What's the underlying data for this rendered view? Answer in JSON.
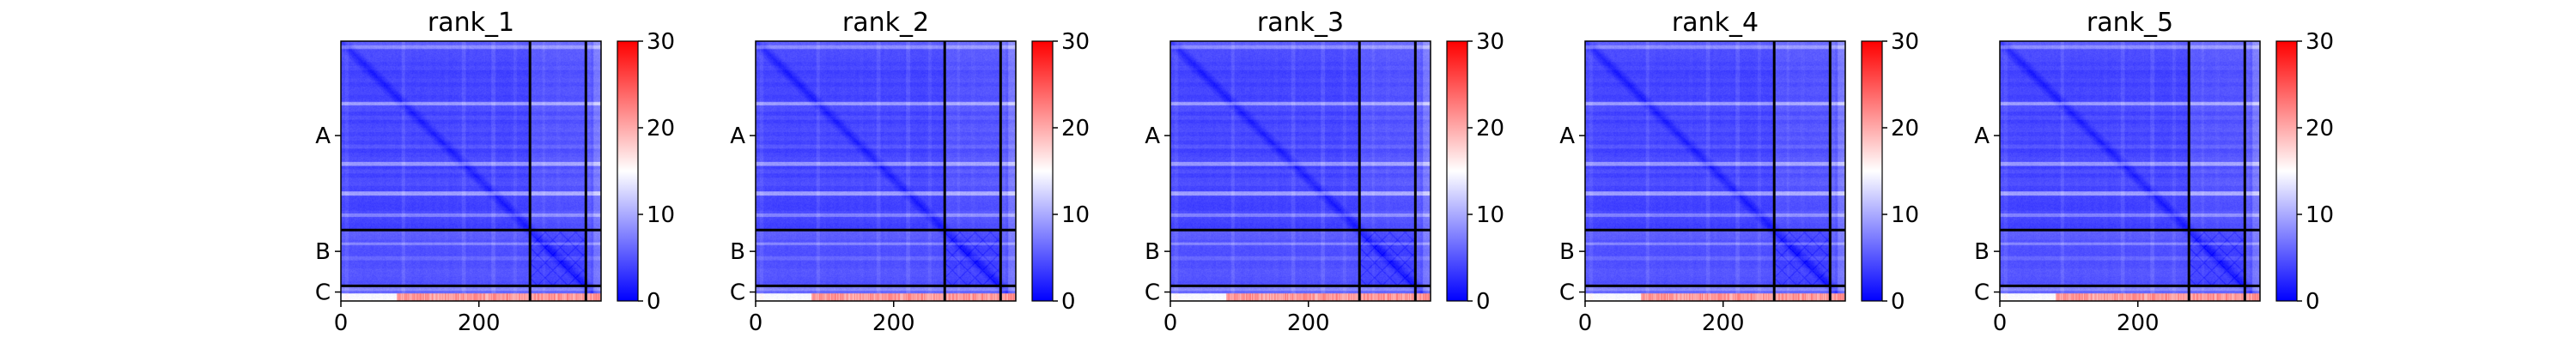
{
  "chart_data": [
    {
      "type": "heatmap",
      "title": "rank_1",
      "xlabel": "",
      "ylabel": "",
      "xlim": [
        0,
        377
      ],
      "ylim": [
        377,
        0
      ],
      "x_ticks": [
        {
          "value": 0,
          "label": "0"
        },
        {
          "value": 200,
          "label": "200"
        }
      ],
      "y_tick_labels": [
        {
          "value": 137,
          "label": "A"
        },
        {
          "value": 305,
          "label": "B"
        },
        {
          "value": 364,
          "label": "C"
        }
      ],
      "chain_boundaries": [
        274,
        355
      ],
      "colorbar": {
        "min": 0,
        "max": 30,
        "ticks": [
          "0",
          "10",
          "20",
          "30"
        ],
        "colormap": "bwr"
      }
    },
    {
      "type": "heatmap",
      "title": "rank_2",
      "xlabel": "",
      "ylabel": "",
      "xlim": [
        0,
        377
      ],
      "ylim": [
        377,
        0
      ],
      "x_ticks": [
        {
          "value": 0,
          "label": "0"
        },
        {
          "value": 200,
          "label": "200"
        }
      ],
      "y_tick_labels": [
        {
          "value": 137,
          "label": "A"
        },
        {
          "value": 305,
          "label": "B"
        },
        {
          "value": 364,
          "label": "C"
        }
      ],
      "chain_boundaries": [
        274,
        355
      ],
      "colorbar": {
        "min": 0,
        "max": 30,
        "ticks": [
          "0",
          "10",
          "20",
          "30"
        ],
        "colormap": "bwr"
      }
    },
    {
      "type": "heatmap",
      "title": "rank_3",
      "xlabel": "",
      "ylabel": "",
      "xlim": [
        0,
        377
      ],
      "ylim": [
        377,
        0
      ],
      "x_ticks": [
        {
          "value": 0,
          "label": "0"
        },
        {
          "value": 200,
          "label": "200"
        }
      ],
      "y_tick_labels": [
        {
          "value": 137,
          "label": "A"
        },
        {
          "value": 305,
          "label": "B"
        },
        {
          "value": 364,
          "label": "C"
        }
      ],
      "chain_boundaries": [
        274,
        355
      ],
      "colorbar": {
        "min": 0,
        "max": 30,
        "ticks": [
          "0",
          "10",
          "20",
          "30"
        ],
        "colormap": "bwr"
      }
    },
    {
      "type": "heatmap",
      "title": "rank_4",
      "xlabel": "",
      "ylabel": "",
      "xlim": [
        0,
        377
      ],
      "ylim": [
        377,
        0
      ],
      "x_ticks": [
        {
          "value": 0,
          "label": "0"
        },
        {
          "value": 200,
          "label": "200"
        }
      ],
      "y_tick_labels": [
        {
          "value": 137,
          "label": "A"
        },
        {
          "value": 305,
          "label": "B"
        },
        {
          "value": 364,
          "label": "C"
        }
      ],
      "chain_boundaries": [
        274,
        355
      ],
      "colorbar": {
        "min": 0,
        "max": 30,
        "ticks": [
          "0",
          "10",
          "20",
          "30"
        ],
        "colormap": "bwr"
      }
    },
    {
      "type": "heatmap",
      "title": "rank_5",
      "xlabel": "",
      "ylabel": "",
      "xlim": [
        0,
        377
      ],
      "ylim": [
        377,
        0
      ],
      "x_ticks": [
        {
          "value": 0,
          "label": "0"
        },
        {
          "value": 200,
          "label": "200"
        }
      ],
      "y_tick_labels": [
        {
          "value": 137,
          "label": "A"
        },
        {
          "value": 305,
          "label": "B"
        },
        {
          "value": 364,
          "label": "C"
        }
      ],
      "chain_boundaries": [
        274,
        355
      ],
      "colorbar": {
        "min": 0,
        "max": 30,
        "ticks": [
          "0",
          "10",
          "20",
          "30"
        ],
        "colormap": "bwr"
      }
    }
  ],
  "colors": {
    "low": "#0000ff",
    "mid": "#ffffff",
    "high": "#ff0000",
    "boundary_line": "#000000"
  }
}
